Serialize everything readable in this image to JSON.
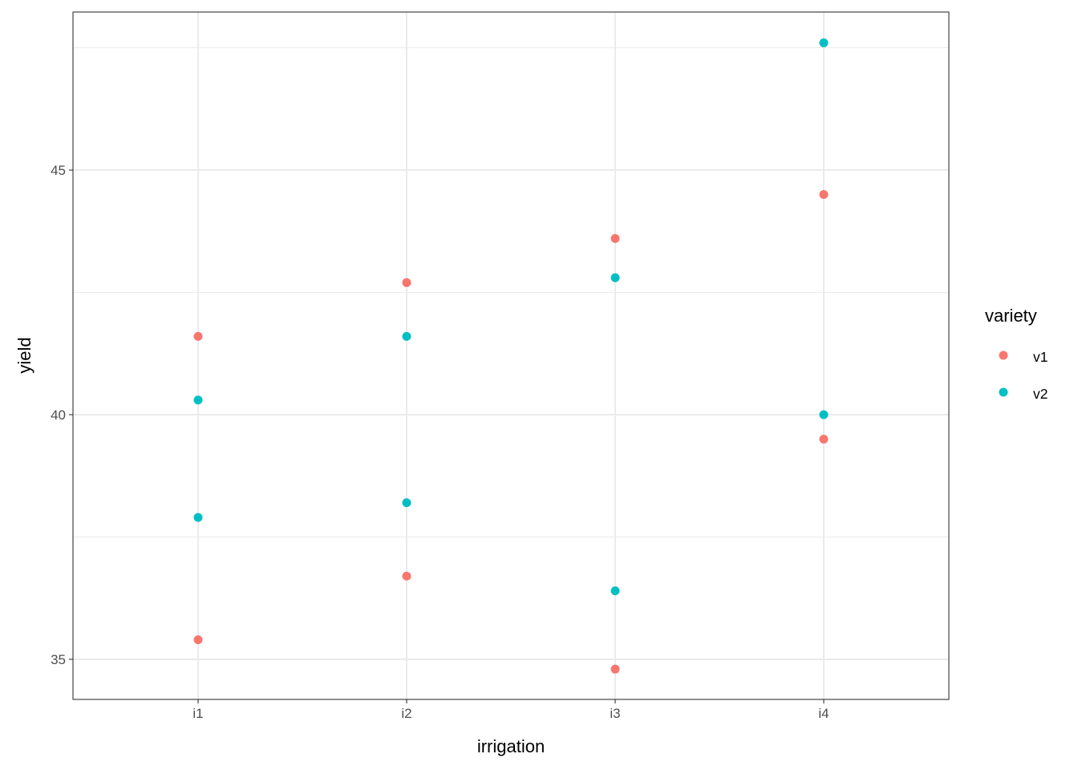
{
  "chart_data": {
    "type": "scatter",
    "title": "",
    "xlabel": "irrigation",
    "ylabel": "yield",
    "categories": [
      "i1",
      "i2",
      "i3",
      "i4"
    ],
    "ylim": [
      34.18,
      48.23
    ],
    "yticks": [
      35,
      40,
      45
    ],
    "yticks_labels": [
      "35",
      "40",
      "45"
    ],
    "minor_yticks": [
      37.5,
      42.5,
      47.5
    ],
    "grid": true,
    "legend": {
      "title": "variety",
      "placement": "right",
      "entries": [
        "v1",
        "v2"
      ]
    },
    "series": [
      {
        "name": "v1",
        "color": "#F8766D",
        "points": [
          {
            "x": "i1",
            "y": 41.6
          },
          {
            "x": "i1",
            "y": 35.4
          },
          {
            "x": "i2",
            "y": 42.7
          },
          {
            "x": "i2",
            "y": 36.7
          },
          {
            "x": "i3",
            "y": 43.6
          },
          {
            "x": "i3",
            "y": 34.8
          },
          {
            "x": "i4",
            "y": 44.5
          },
          {
            "x": "i4",
            "y": 39.5
          }
        ]
      },
      {
        "name": "v2",
        "color": "#00BFC4",
        "points": [
          {
            "x": "i1",
            "y": 40.3
          },
          {
            "x": "i1",
            "y": 37.9
          },
          {
            "x": "i2",
            "y": 41.6
          },
          {
            "x": "i2",
            "y": 38.2
          },
          {
            "x": "i3",
            "y": 42.8
          },
          {
            "x": "i3",
            "y": 36.4
          },
          {
            "x": "i4",
            "y": 47.6
          },
          {
            "x": "i4",
            "y": 40.0
          }
        ]
      }
    ]
  }
}
